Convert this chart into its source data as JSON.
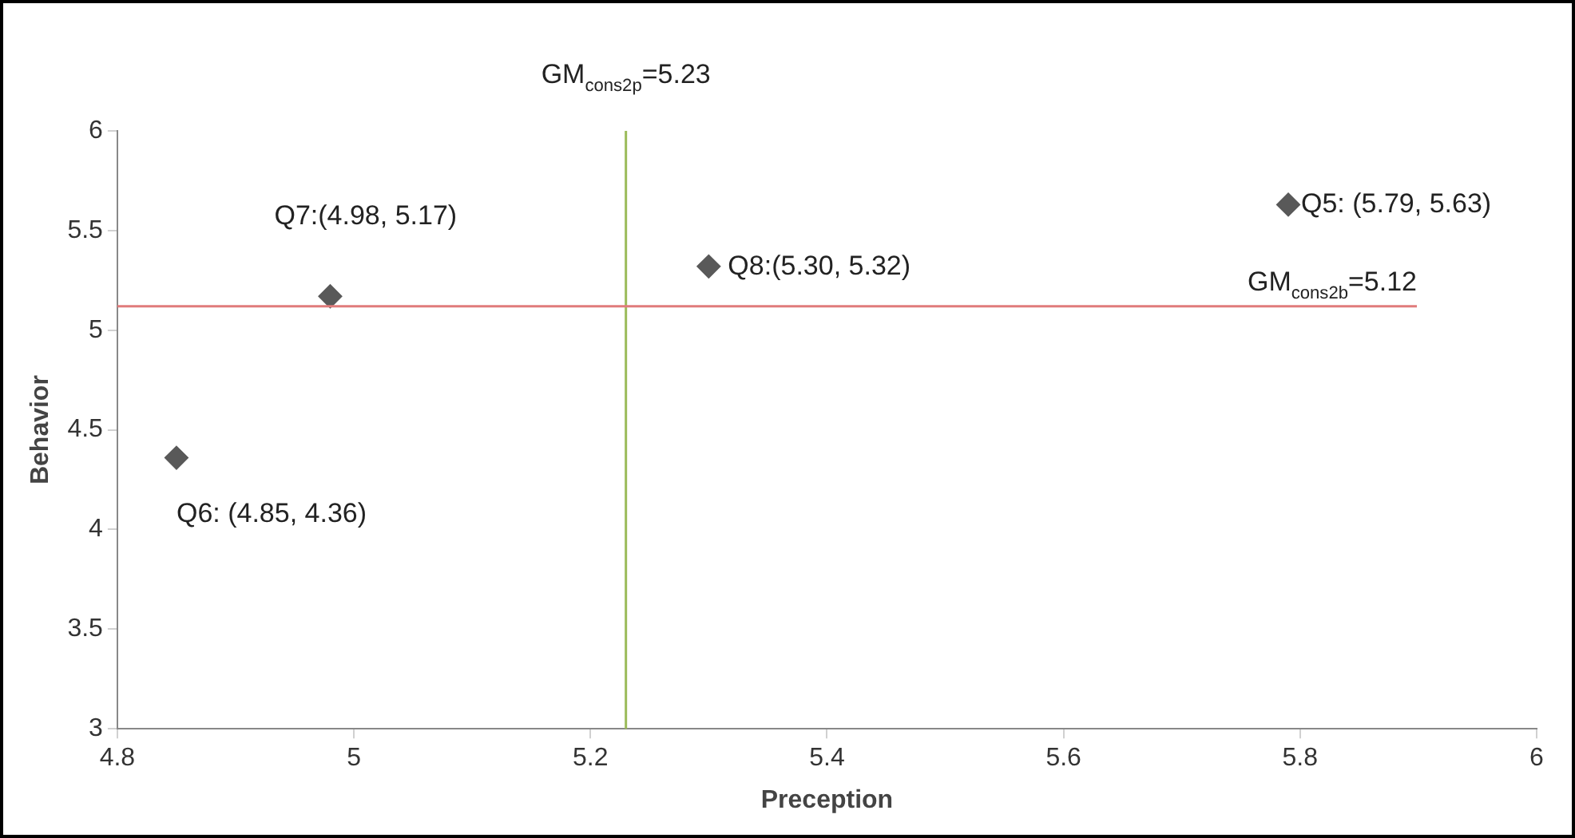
{
  "chart_data": {
    "type": "scatter",
    "xlabel": "Preception",
    "ylabel": "Behavior",
    "x": [
      5.79,
      4.85,
      4.98,
      5.3
    ],
    "series": [
      {
        "color": "#595959",
        "values": [
          5.63,
          4.36,
          5.17,
          5.32
        ]
      }
    ],
    "xlim": [
      4.8,
      6
    ],
    "xticks": [
      4.8,
      5,
      5.2,
      5.4,
      5.6,
      5.8,
      6
    ],
    "ylim": [
      3,
      6
    ],
    "yticks": [
      3,
      3.5,
      4,
      4.5,
      5,
      5.5,
      6
    ],
    "ref_lines": [
      {
        "axis": "x",
        "value": 5.23,
        "label": "GM$_{cons2p}$=5.23",
        "color": "#9bbb59"
      },
      {
        "axis": "y",
        "value": 5.12,
        "label": "GM$_{cons2b}$=5.12",
        "color": "#e07b7b"
      }
    ],
    "annotations": [
      {
        "text": "Q5: (5.79, 5.63)",
        "x": 5.79,
        "y": 5.63
      },
      {
        "text": "Q6: (4.85, 4.36)",
        "x": 4.85,
        "y": 4.36
      },
      {
        "text": "Q7:(4.98, 5.17)",
        "x": 4.98,
        "y": 5.17
      },
      {
        "text": "Q8:(5.30, 5.32)",
        "x": 5.3,
        "y": 5.32
      }
    ],
    "marker": "diamond",
    "grid": false,
    "legend": false
  }
}
